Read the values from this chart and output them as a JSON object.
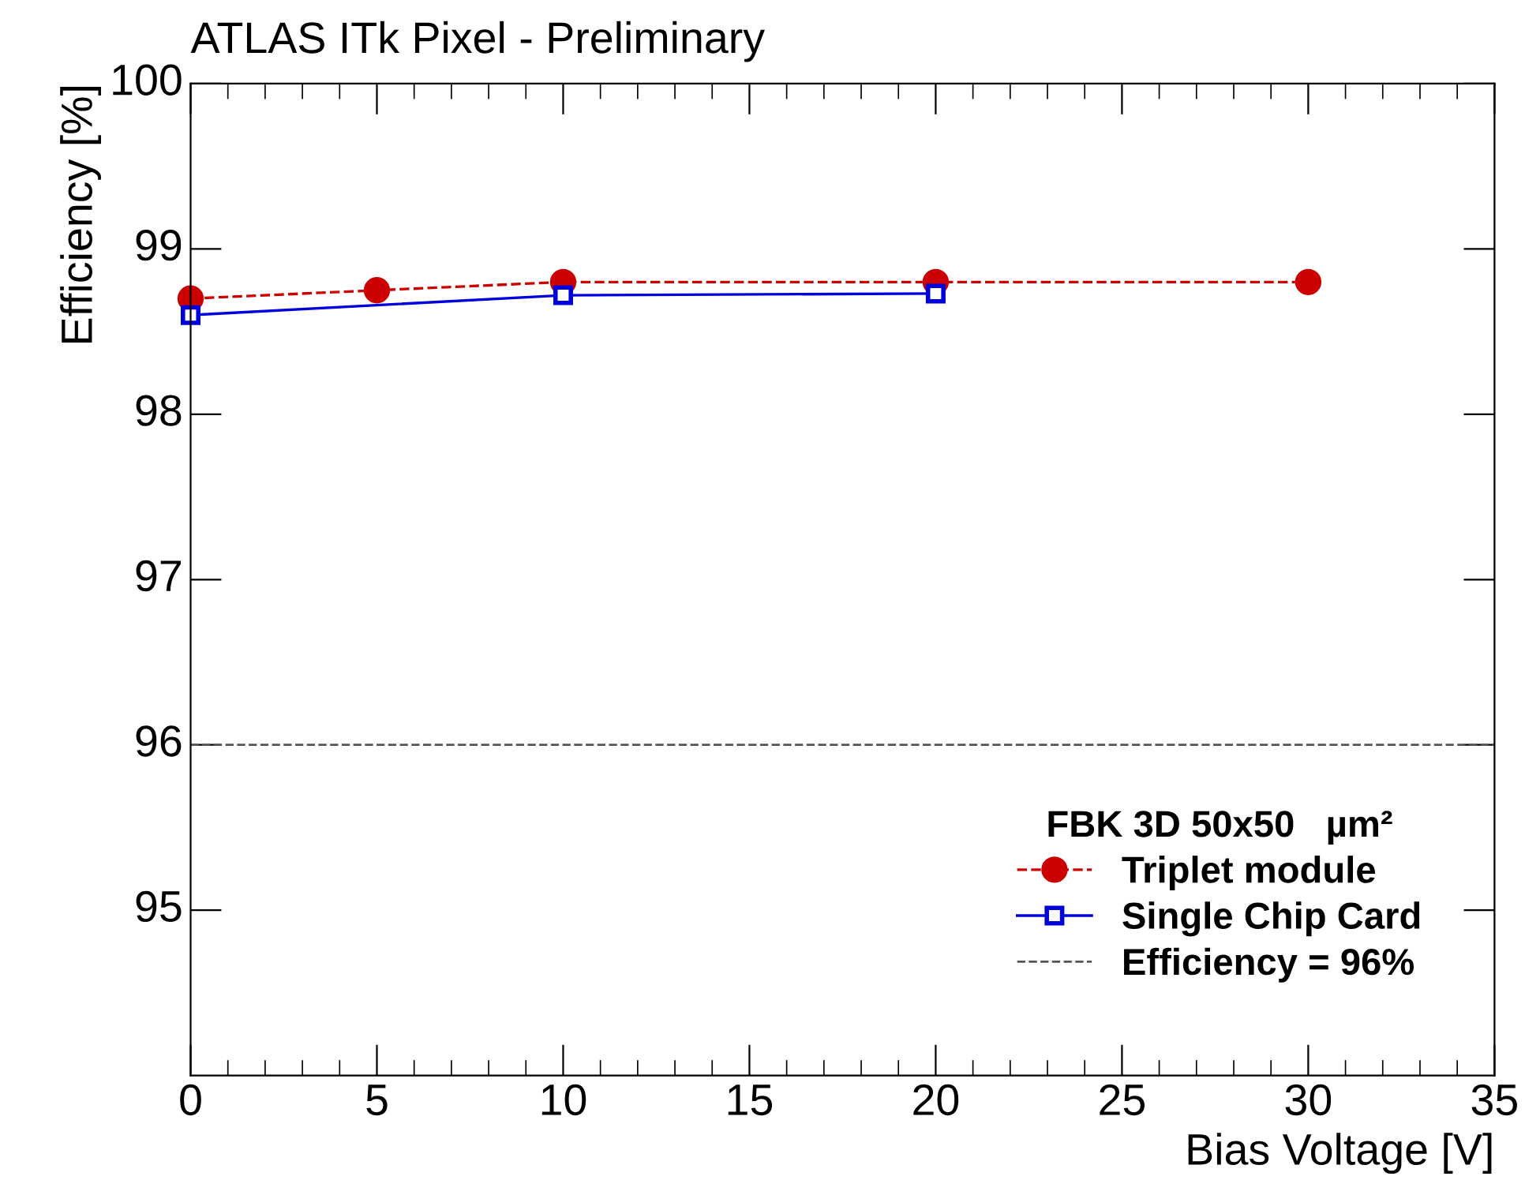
{
  "chart_data": {
    "type": "line",
    "title": "ATLAS ITk Pixel - Preliminary",
    "xlabel": "Bias Voltage [V]",
    "ylabel": "Efficiency [%]",
    "legend_title": "FBK 3D 50x50   µm²",
    "series": [
      {
        "name": "Triplet module",
        "color": "#cc0000",
        "x": [
          0,
          5,
          10,
          20,
          30
        ],
        "values": [
          98.7,
          98.75,
          98.8,
          98.8,
          98.8
        ],
        "errors": [
          0.05,
          0.05,
          0.05,
          0.05,
          0.05
        ],
        "marker": "circle",
        "line_style": "dashed"
      },
      {
        "name": "Single Chip Card",
        "color": "#0000dd",
        "x": [
          0,
          10,
          20
        ],
        "values": [
          98.6,
          98.72,
          98.73
        ],
        "errors": [
          0.04,
          0.04,
          0.04
        ],
        "marker": "square",
        "line_style": "solid"
      }
    ],
    "ref_lines": [
      {
        "axis": "y",
        "value": 96,
        "label": "Efficiency = 96%",
        "color": "#555555",
        "line_style": "dashed"
      }
    ],
    "xlim": [
      0,
      35
    ],
    "ylim": [
      94,
      100
    ],
    "xticks": [
      0,
      5,
      10,
      15,
      20,
      25,
      30,
      35
    ],
    "yticks": [
      95,
      96,
      97,
      98,
      99,
      100
    ],
    "grid": false,
    "legend": "bottom right"
  }
}
